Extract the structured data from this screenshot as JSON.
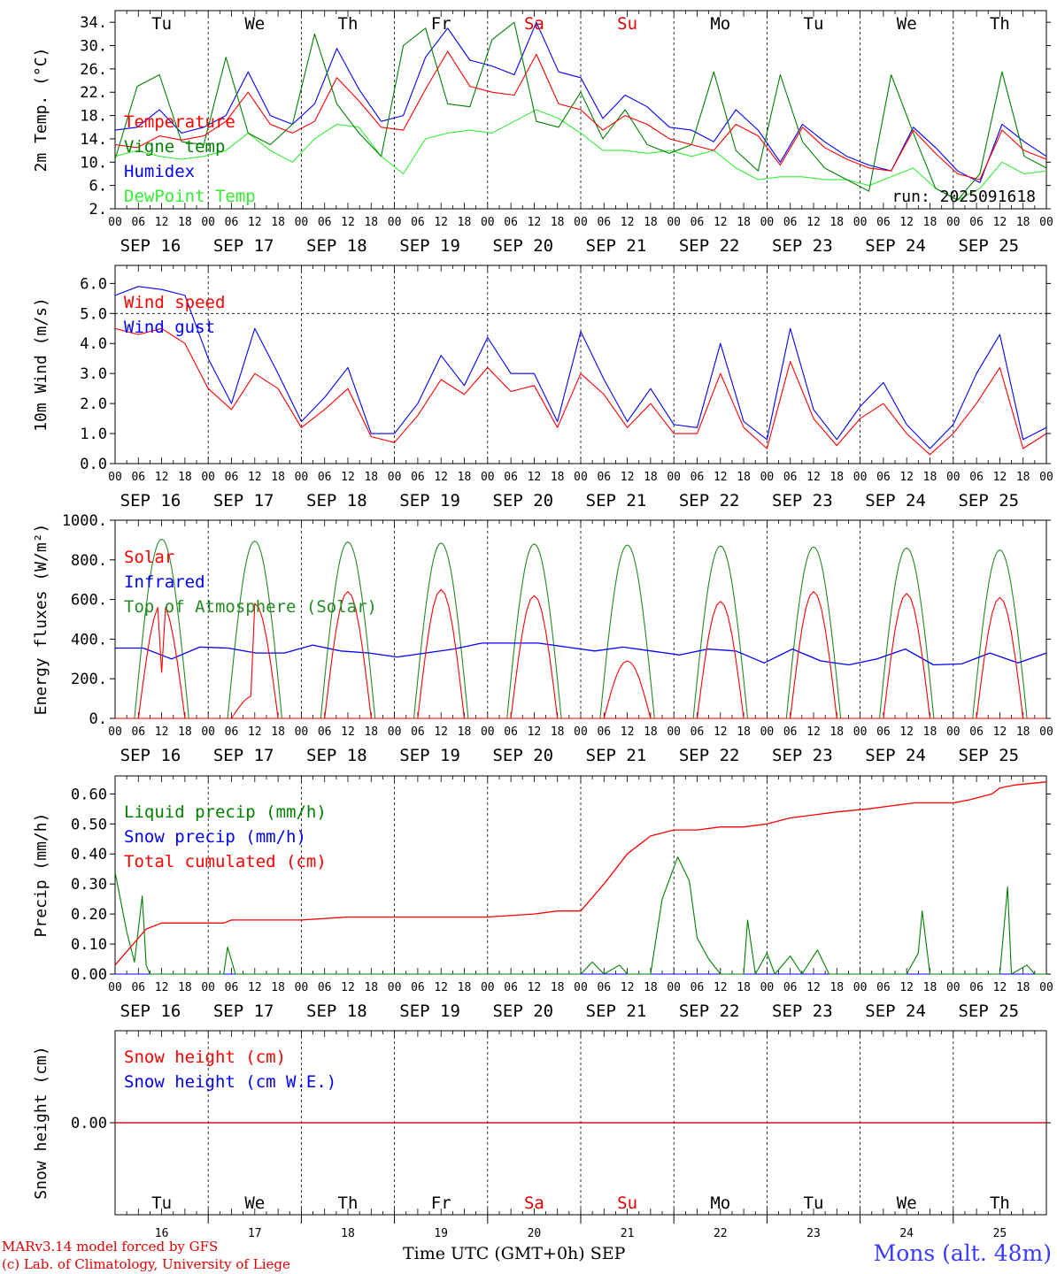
{
  "chart_data": [
    {
      "type": "line",
      "title": "",
      "ylabel": "2m Temp. (°C)",
      "ylim": [
        2,
        36
      ],
      "yticks": [
        "34.",
        "30.",
        "26.",
        "22.",
        "18.",
        "14.",
        "10.",
        "6.",
        "2."
      ],
      "ytick_values": [
        34,
        30,
        26,
        22,
        18,
        14,
        10,
        6,
        2
      ],
      "weekdays": [
        "Tu",
        "We",
        "Th",
        "Fr",
        "Sa",
        "Su",
        "Mo",
        "Tu",
        "We",
        "Th"
      ],
      "weekday_colors": [
        "#000000",
        "#000000",
        "#000000",
        "#000000",
        "#e00000",
        "#e00000",
        "#000000",
        "#000000",
        "#000000",
        "#000000"
      ],
      "annotation": "run: 2025091618",
      "series": [
        {
          "name": "Temperature",
          "color": "#ff0000",
          "values": [
            13.0,
            12.5,
            14.5,
            13.8,
            14.5,
            17.0,
            22.0,
            16.5,
            15.0,
            17.0,
            24.5,
            20.5,
            16.0,
            15.5,
            22.5,
            29.0,
            23.0,
            22.0,
            21.5,
            28.5,
            20.0,
            19.0,
            15.5,
            18.0,
            16.5,
            14.0,
            13.0,
            12.0,
            16.5,
            14.5,
            9.5,
            16.0,
            12.5,
            10.5,
            9.0,
            8.5,
            15.5,
            11.5,
            8.0,
            7.0,
            15.5,
            12.0,
            10.5
          ]
        },
        {
          "name": "Vigne temp",
          "color": "#008000",
          "values": [
            10.5,
            23.0,
            25.0,
            13.5,
            13.0,
            28.0,
            15.0,
            13.0,
            16.5,
            32.0,
            20.0,
            15.0,
            11.0,
            30.0,
            33.0,
            20.0,
            19.5,
            31.0,
            34.0,
            17.0,
            16.0,
            22.0,
            14.0,
            19.0,
            13.0,
            11.5,
            13.0,
            25.5,
            12.0,
            8.5,
            25.0,
            13.5,
            9.0,
            7.0,
            5.0,
            25.0,
            15.0,
            5.5,
            3.5,
            8.0,
            25.5,
            11.0,
            9.0
          ]
        },
        {
          "name": "Humidex",
          "color": "#0000ff",
          "values": [
            15.5,
            16.0,
            19.0,
            15.0,
            16.0,
            18.0,
            25.5,
            18.0,
            16.5,
            20.0,
            29.5,
            22.5,
            17.0,
            18.0,
            28.0,
            33.0,
            27.5,
            26.5,
            25.0,
            34.0,
            25.5,
            24.5,
            17.5,
            21.5,
            19.5,
            16.0,
            15.5,
            13.5,
            19.0,
            15.5,
            10.0,
            16.5,
            13.5,
            11.0,
            9.5,
            8.5,
            16.0,
            12.5,
            8.5,
            6.5,
            16.5,
            13.5,
            11.0
          ]
        },
        {
          "name": "DewPoint Temp",
          "color": "#33ee33",
          "values": [
            11.0,
            12.0,
            11.0,
            10.5,
            11.0,
            12.0,
            15.0,
            12.0,
            10.0,
            14.0,
            16.5,
            16.0,
            11.0,
            8.0,
            14.0,
            15.0,
            15.5,
            15.0,
            17.0,
            19.0,
            17.5,
            15.0,
            12.0,
            12.0,
            11.5,
            12.0,
            11.0,
            12.0,
            9.0,
            7.0,
            7.5,
            7.5,
            7.0,
            7.0,
            6.0,
            7.5,
            9.0,
            5.5,
            3.5,
            5.5,
            10.0,
            8.0,
            8.5
          ]
        }
      ]
    },
    {
      "type": "line",
      "title": "",
      "ylabel": "10m Wind (m/s)",
      "ylim": [
        0,
        6.6
      ],
      "yticks": [
        "6.0",
        "5.0",
        "4.0",
        "3.0",
        "2.0",
        "1.0",
        "0.0"
      ],
      "ytick_values": [
        6,
        5,
        4,
        3,
        2,
        1,
        0
      ],
      "ref_line": 5.0,
      "series": [
        {
          "name": "Wind speed",
          "color": "#ff0000",
          "values": [
            4.5,
            4.3,
            4.5,
            4.0,
            2.5,
            1.8,
            3.0,
            2.5,
            1.2,
            1.8,
            2.5,
            0.9,
            0.7,
            1.6,
            2.8,
            2.3,
            3.2,
            2.4,
            2.6,
            1.2,
            3.0,
            2.3,
            1.2,
            2.0,
            1.0,
            1.0,
            3.0,
            1.2,
            0.5,
            3.4,
            1.5,
            0.6,
            1.5,
            2.0,
            1.0,
            0.3,
            1.0,
            2.0,
            3.2,
            0.5,
            1.0
          ]
        },
        {
          "name": "Wind gust",
          "color": "#0000ff",
          "values": [
            5.6,
            5.9,
            5.8,
            5.6,
            3.5,
            2.0,
            4.5,
            3.0,
            1.4,
            2.2,
            3.2,
            1.0,
            1.0,
            2.0,
            3.6,
            2.6,
            4.2,
            3.0,
            3.0,
            1.4,
            4.4,
            2.8,
            1.4,
            2.5,
            1.3,
            1.2,
            4.0,
            1.4,
            0.8,
            4.5,
            1.8,
            0.8,
            1.9,
            2.7,
            1.3,
            0.5,
            1.3,
            3.0,
            4.3,
            0.8,
            1.2
          ]
        }
      ]
    },
    {
      "type": "line",
      "title": "",
      "ylabel": "Energy fluxes (W/m²)",
      "ylim": [
        0,
        1000
      ],
      "yticks": [
        "1000.",
        "800.",
        "600.",
        "400.",
        "200.",
        "0."
      ],
      "ytick_values": [
        1000,
        800,
        600,
        400,
        200,
        0
      ],
      "series": [
        {
          "name": "Solar",
          "color": "#ff0000",
          "day_peaks": [
            580,
            580,
            640,
            650,
            620,
            290,
            590,
            640,
            630,
            610
          ]
        },
        {
          "name": "Infrared",
          "color": "#0000ff",
          "values": [
            355,
            355,
            300,
            360,
            355,
            330,
            330,
            370,
            340,
            330,
            310,
            330,
            350,
            380,
            380,
            380,
            360,
            340,
            360,
            340,
            320,
            350,
            340,
            280,
            350,
            290,
            270,
            300,
            350,
            270,
            275,
            330,
            280,
            330
          ]
        },
        {
          "name": "Top of Atmosphere (Solar)",
          "color": "#228b22",
          "day_peaks": [
            905,
            895,
            890,
            885,
            880,
            875,
            870,
            865,
            860,
            850
          ]
        }
      ]
    },
    {
      "type": "line",
      "title": "",
      "ylabel": "Precip (mm/h)",
      "ylim": [
        0,
        0.66
      ],
      "yticks": [
        "0.60",
        "0.50",
        "0.40",
        "0.30",
        "0.20",
        "0.10",
        "0.00"
      ],
      "ytick_values": [
        0.6,
        0.5,
        0.4,
        0.3,
        0.2,
        0.1,
        0
      ],
      "series": [
        {
          "name": "Liquid precip (mm/h)",
          "color": "#008000",
          "points": [
            [
              0,
              0.34
            ],
            [
              3,
              0.14
            ],
            [
              5,
              0.04
            ],
            [
              7,
              0.26
            ],
            [
              8,
              0.03
            ],
            [
              9,
              0.0
            ],
            [
              28,
              0.0
            ],
            [
              29,
              0.09
            ],
            [
              31,
              0.0
            ],
            [
              120,
              0.0
            ],
            [
              123,
              0.04
            ],
            [
              126,
              0.0
            ],
            [
              130,
              0.03
            ],
            [
              132,
              0.0
            ],
            [
              138,
              0.0
            ],
            [
              141,
              0.25
            ],
            [
              145,
              0.39
            ],
            [
              148,
              0.31
            ],
            [
              150,
              0.12
            ],
            [
              153,
              0.05
            ],
            [
              156,
              0.0
            ],
            [
              162,
              0.0
            ],
            [
              163,
              0.18
            ],
            [
              165,
              0.0
            ],
            [
              168,
              0.07
            ],
            [
              170,
              0.0
            ],
            [
              174,
              0.06
            ],
            [
              177,
              0.0
            ],
            [
              181,
              0.08
            ],
            [
              184,
              0.0
            ],
            [
              204,
              0.0
            ],
            [
              207,
              0.07
            ],
            [
              208,
              0.21
            ],
            [
              210,
              0.0
            ],
            [
              228,
              0.0
            ],
            [
              230,
              0.29
            ],
            [
              231,
              0.0
            ],
            [
              235,
              0.03
            ],
            [
              237,
              0.0
            ],
            [
              240,
              0.0
            ]
          ]
        },
        {
          "name": "Snow precip (mm/h)",
          "color": "#0000ff",
          "points": [
            [
              0,
              0.0
            ],
            [
              240,
              0.0
            ]
          ]
        },
        {
          "name": "Total cumulated (cm)",
          "color": "#ff0000",
          "points": [
            [
              0,
              0.03
            ],
            [
              4,
              0.09
            ],
            [
              8,
              0.15
            ],
            [
              12,
              0.17
            ],
            [
              28,
              0.17
            ],
            [
              30,
              0.18
            ],
            [
              48,
              0.18
            ],
            [
              60,
              0.19
            ],
            [
              96,
              0.19
            ],
            [
              108,
              0.2
            ],
            [
              114,
              0.21
            ],
            [
              120,
              0.21
            ],
            [
              126,
              0.3
            ],
            [
              132,
              0.4
            ],
            [
              138,
              0.46
            ],
            [
              144,
              0.48
            ],
            [
              150,
              0.48
            ],
            [
              156,
              0.49
            ],
            [
              162,
              0.49
            ],
            [
              168,
              0.5
            ],
            [
              174,
              0.52
            ],
            [
              180,
              0.53
            ],
            [
              186,
              0.54
            ],
            [
              194,
              0.55
            ],
            [
              200,
              0.56
            ],
            [
              206,
              0.57
            ],
            [
              216,
              0.57
            ],
            [
              220,
              0.58
            ],
            [
              226,
              0.6
            ],
            [
              228,
              0.62
            ],
            [
              232,
              0.63
            ],
            [
              240,
              0.64
            ]
          ]
        }
      ]
    },
    {
      "type": "line",
      "title": "",
      "ylabel": "Snow height (cm)",
      "ylim": [
        -1,
        1
      ],
      "yticks": [
        "0.00"
      ],
      "ytick_values": [
        0
      ],
      "weekdays": [
        "Tu",
        "We",
        "Th",
        "Fr",
        "Sa",
        "Su",
        "Mo",
        "Tu",
        "We",
        "Th"
      ],
      "weekday_colors": [
        "#000000",
        "#000000",
        "#000000",
        "#000000",
        "#e00000",
        "#e00000",
        "#000000",
        "#000000",
        "#000000",
        "#000000"
      ],
      "day_numbers": [
        "16",
        "17",
        "18",
        "19",
        "20",
        "21",
        "22",
        "23",
        "24",
        "25"
      ],
      "series": [
        {
          "name": "Snow height (cm)",
          "color": "#ff0000",
          "values": [
            0,
            0
          ]
        },
        {
          "name": "Snow height (cm W.E.)",
          "color": "#0000ff",
          "values": [
            0,
            0
          ]
        }
      ]
    }
  ],
  "x_axis": {
    "hour_ticks": [
      "00",
      "06",
      "12",
      "18"
    ],
    "end_tick": "00",
    "dates": [
      "SEP 16",
      "SEP 17",
      "SEP 18",
      "SEP 19",
      "SEP 20",
      "SEP 21",
      "SEP 22",
      "SEP 23",
      "SEP 24",
      "SEP 25"
    ]
  },
  "footer": {
    "model_line1": "MARv3.14 model forced by GFS",
    "model_line2": "(c) Lab. of Climatology, University of Liege",
    "xlabel_time": "Time UTC (GMT+0h)",
    "xlabel_month": "SEP",
    "station": "Mons (alt. 48m)"
  }
}
